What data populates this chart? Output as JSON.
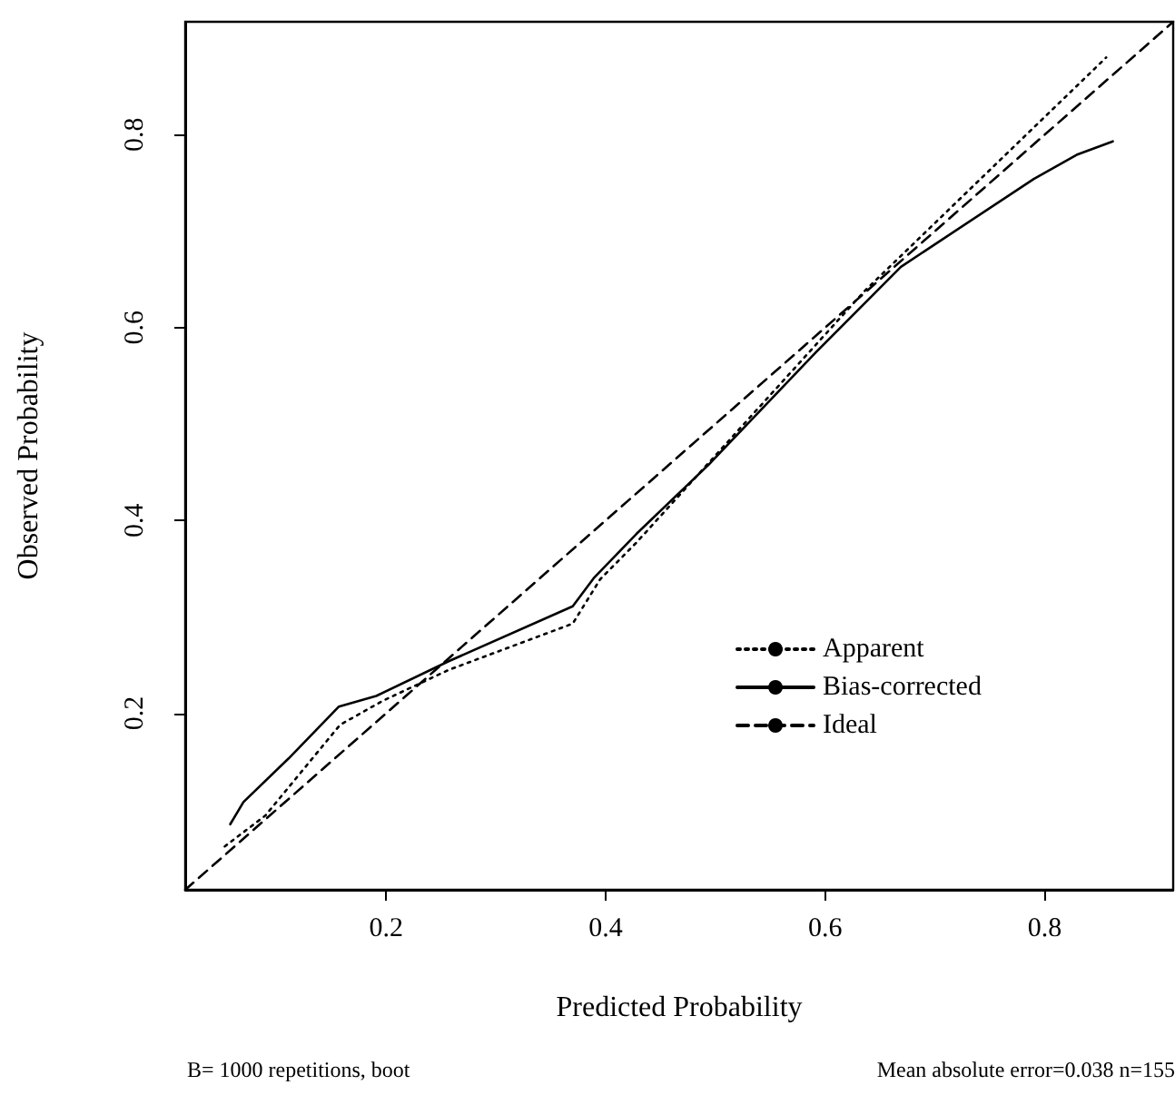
{
  "chart_data": {
    "type": "line",
    "xlabel": "Predicted Probability",
    "ylabel": "Observed Probability",
    "xlim": [
      0.017,
      0.917
    ],
    "ylim": [
      0.017,
      0.917
    ],
    "xticks": [
      0.2,
      0.4,
      0.6,
      0.8
    ],
    "yticks": [
      0.2,
      0.4,
      0.6,
      0.8
    ],
    "grid": false,
    "legend": "bottom right",
    "marker": "none",
    "series": [
      {
        "name": "Apparent",
        "color": "#000000",
        "line_style": "dotted",
        "x": [
          0.053,
          0.09,
          0.158,
          0.197,
          0.257,
          0.37,
          0.395,
          0.428,
          0.636,
          0.856
        ],
        "values": [
          0.062,
          0.094,
          0.188,
          0.213,
          0.245,
          0.293,
          0.339,
          0.377,
          0.638,
          0.88
        ]
      },
      {
        "name": "Bias-corrected",
        "color": "#000000",
        "line_style": "solid",
        "x": [
          0.058,
          0.07,
          0.111,
          0.157,
          0.191,
          0.257,
          0.37,
          0.389,
          0.428,
          0.494,
          0.592,
          0.669,
          0.79,
          0.829,
          0.862
        ],
        "values": [
          0.085,
          0.108,
          0.153,
          0.207,
          0.218,
          0.254,
          0.311,
          0.34,
          0.386,
          0.458,
          0.575,
          0.663,
          0.754,
          0.779,
          0.793
        ]
      },
      {
        "name": "Ideal",
        "color": "#000000",
        "line_style": "dashed",
        "x": [
          0.017,
          0.917
        ],
        "values": [
          0.017,
          0.917
        ]
      }
    ],
    "annotations": [
      "B= 1000 repetitions, boot",
      "Mean absolute error=0.038 n=155"
    ]
  }
}
